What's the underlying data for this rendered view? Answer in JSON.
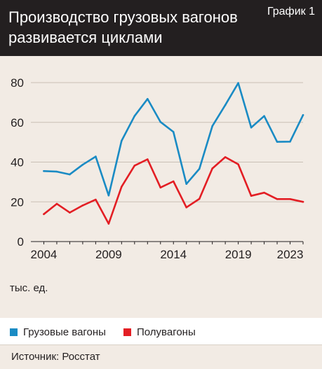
{
  "header": {
    "title_line1": "Производство грузовых вагонов",
    "title_line2": "развивается циклами",
    "graph_number": "График 1"
  },
  "unit_label": "тыс. ед.",
  "legend": [
    {
      "label": "Грузовые вагоны",
      "color": "#1a8bc4"
    },
    {
      "label": "Полувагоны",
      "color": "#e31e24"
    }
  ],
  "source": "Источник: Росстат",
  "chart_data": {
    "type": "line",
    "title": "Производство грузовых вагонов развивается циклами",
    "ylabel": "тыс. ед.",
    "xlim": [
      2003,
      2024
    ],
    "ylim": [
      0,
      80
    ],
    "x_ticks": [
      2004,
      2009,
      2014,
      2019,
      2023
    ],
    "y_ticks": [
      0,
      20,
      40,
      60,
      80
    ],
    "grid": true,
    "legend_position": "bottom",
    "x": [
      2004,
      2005,
      2006,
      2007,
      2008,
      2009,
      2010,
      2011,
      2012,
      2013,
      2014,
      2015,
      2016,
      2017,
      2018,
      2019,
      2020,
      2021,
      2022,
      2023,
      2024
    ],
    "series": [
      {
        "name": "Грузовые вагоны",
        "color": "#1a8bc4",
        "values": [
          35.5,
          35.2,
          33.8,
          38.7,
          42.8,
          23.2,
          50.7,
          63.2,
          71.8,
          60.2,
          55.2,
          29.0,
          36.6,
          58.1,
          68.7,
          79.8,
          57.4,
          63.2,
          50.2,
          50.3,
          63.7
        ]
      },
      {
        "name": "Полувагоны",
        "color": "#e31e24",
        "values": [
          13.8,
          19.0,
          14.6,
          18.2,
          21.1,
          9.0,
          27.6,
          38.2,
          41.4,
          27.2,
          30.3,
          17.2,
          21.5,
          36.8,
          42.5,
          38.9,
          23.0,
          24.6,
          21.4,
          21.4,
          20.0
        ]
      }
    ]
  }
}
